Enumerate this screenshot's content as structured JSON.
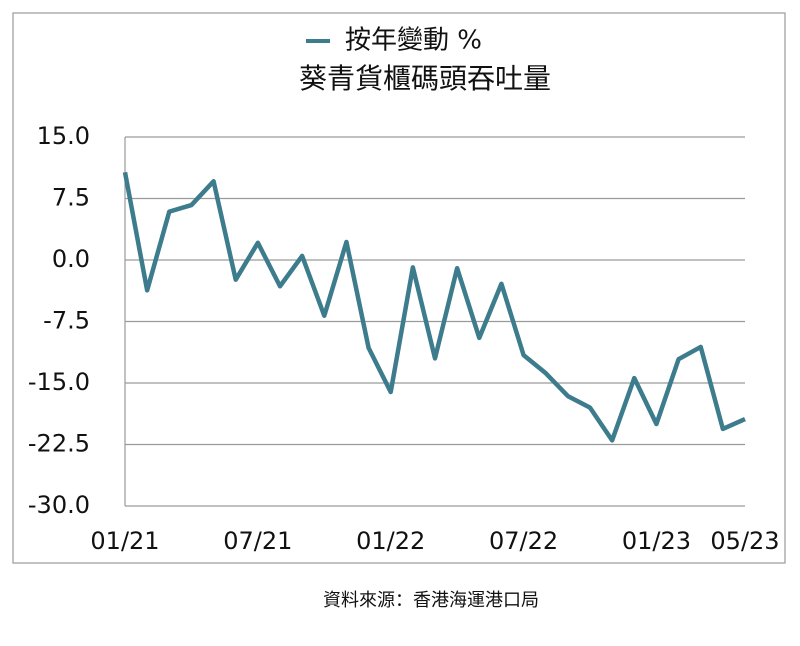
{
  "chart_data": {
    "type": "line",
    "title": "葵青貨櫃碼頭吞吐量",
    "source": "資料來源：香港海運港口局",
    "categories": [
      "01/21",
      null,
      null,
      null,
      null,
      null,
      "07/21",
      null,
      null,
      null,
      null,
      null,
      "01/22",
      null,
      null,
      null,
      null,
      null,
      "07/22",
      null,
      null,
      null,
      null,
      null,
      "01/23",
      null,
      null,
      null,
      "05/23"
    ],
    "series": [
      {
        "name": "按年變動 %",
        "color": "#3d7c8c",
        "values": [
          10.7,
          -3.7,
          5.9,
          6.7,
          9.6,
          -2.4,
          2.1,
          -3.2,
          0.5,
          -6.8,
          2.2,
          -10.7,
          -16.1,
          -0.9,
          -12.0,
          -1.0,
          -9.5,
          -2.9,
          -11.6,
          -13.8,
          -16.6,
          -18.0,
          -22.0,
          -14.4,
          -20.0,
          -12.1,
          -10.6,
          -20.6,
          -19.4
        ]
      }
    ],
    "ylim": [
      -30,
      15
    ],
    "yticks": [
      {
        "value": 15,
        "label": "15.0"
      },
      7.5,
      {
        "value": 0,
        "label": "0.0"
      },
      -7.5,
      {
        "value": -15,
        "label": "-15.0"
      },
      -22.5,
      {
        "value": -30,
        "label": "-30.0"
      }
    ],
    "grid": true,
    "legend": "top"
  }
}
